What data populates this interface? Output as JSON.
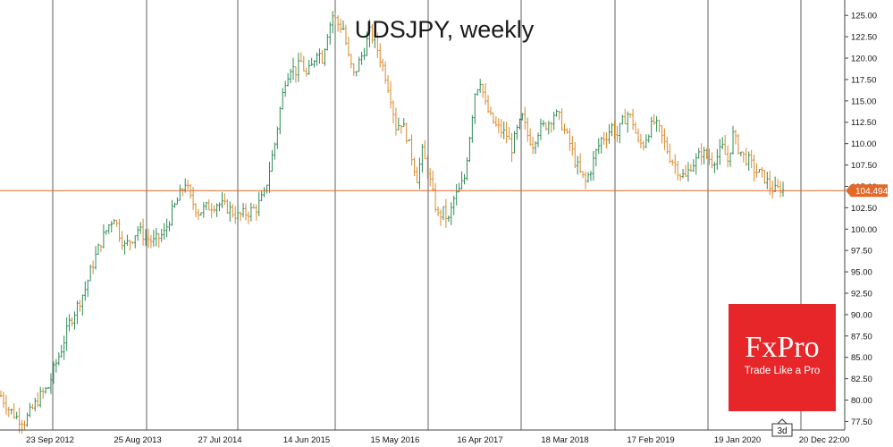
{
  "chart_data": {
    "type": "candlestick",
    "title": "UDSJPY, weekly",
    "symbol": "UDSJPY",
    "timeframe": "weekly",
    "ylim": [
      76.5,
      126.8
    ],
    "y_ticks": [
      "125.00",
      "122.50",
      "120.00",
      "117.50",
      "115.00",
      "112.50",
      "110.00",
      "107.50",
      "105.00",
      "102.50",
      "100.00",
      "97.50",
      "95.00",
      "92.50",
      "90.00",
      "87.50",
      "85.00",
      "82.50",
      "80.00",
      "77.50"
    ],
    "x_ticks": [
      "23 Sep 2012",
      "25 Aug 2013",
      "27 Jul 2014",
      "14 Jun 2015",
      "15 May 2016",
      "16 Apr 2017",
      "18 Mar 2018",
      "17 Feb 2019",
      "19 Jan 2020",
      "20 Dec 22:00"
    ],
    "current_price": "104.494",
    "price_line_color": "#e2692a",
    "bull_color": "#2e8b57",
    "bear_color": "#d98a2b",
    "grid": true,
    "period_marker": "3d",
    "series": [
      {
        "values": [
          [
            0,
            80.5
          ],
          [
            3,
            79.0
          ],
          [
            6,
            78.0
          ],
          [
            9,
            77.5
          ],
          [
            12,
            79.0
          ],
          [
            15,
            80.5
          ],
          [
            18,
            81.5
          ],
          [
            20,
            83.5
          ],
          [
            23,
            86.0
          ],
          [
            26,
            89.0
          ],
          [
            29,
            91.0
          ],
          [
            32,
            93.0
          ],
          [
            35,
            96.0
          ],
          [
            38,
            98.5
          ],
          [
            41,
            100.5
          ],
          [
            43,
            101.5
          ],
          [
            45,
            99.5
          ],
          [
            47,
            98.0
          ],
          [
            50,
            99.0
          ],
          [
            52,
            100.0
          ],
          [
            55,
            99.0
          ],
          [
            58,
            98.5
          ],
          [
            62,
            99.5
          ],
          [
            65,
            102.0
          ],
          [
            68,
            104.0
          ],
          [
            70,
            105.5
          ],
          [
            72,
            103.5
          ],
          [
            75,
            102.0
          ],
          [
            78,
            102.5
          ],
          [
            82,
            103.0
          ],
          [
            86,
            102.5
          ],
          [
            90,
            101.5
          ],
          [
            94,
            102.0
          ],
          [
            97,
            102.5
          ],
          [
            100,
            104.0
          ],
          [
            102,
            107.0
          ],
          [
            104,
            110.0
          ],
          [
            106,
            114.0
          ],
          [
            108,
            117.5
          ],
          [
            110,
            119.0
          ],
          [
            112,
            118.5
          ],
          [
            114,
            119.5
          ],
          [
            116,
            118.0
          ],
          [
            118,
            119.0
          ],
          [
            120,
            121.0
          ],
          [
            122,
            120.0
          ],
          [
            124,
            123.0
          ],
          [
            126,
            125.0
          ],
          [
            128,
            124.0
          ],
          [
            130,
            123.5
          ],
          [
            132,
            120.0
          ],
          [
            134,
            118.0
          ],
          [
            136,
            119.5
          ],
          [
            138,
            121.0
          ],
          [
            140,
            123.0
          ],
          [
            142,
            122.0
          ],
          [
            144,
            120.0
          ],
          [
            146,
            118.0
          ],
          [
            148,
            115.5
          ],
          [
            150,
            112.0
          ],
          [
            152,
            112.5
          ],
          [
            154,
            111.0
          ],
          [
            156,
            108.5
          ],
          [
            158,
            106.0
          ],
          [
            160,
            109.0
          ],
          [
            162,
            107.0
          ],
          [
            164,
            104.0
          ],
          [
            166,
            101.5
          ],
          [
            168,
            102.0
          ],
          [
            170,
            101.0
          ],
          [
            172,
            103.5
          ],
          [
            174,
            104.5
          ],
          [
            176,
            106.0
          ],
          [
            178,
            111.0
          ],
          [
            180,
            116.0
          ],
          [
            182,
            117.5
          ],
          [
            184,
            114.5
          ],
          [
            186,
            113.0
          ],
          [
            188,
            112.0
          ],
          [
            190,
            111.5
          ],
          [
            192,
            111.0
          ],
          [
            194,
            109.5
          ],
          [
            196,
            111.5
          ],
          [
            198,
            113.0
          ],
          [
            200,
            111.0
          ],
          [
            202,
            110.0
          ],
          [
            204,
            111.5
          ],
          [
            206,
            112.0
          ],
          [
            208,
            112.5
          ],
          [
            210,
            113.5
          ],
          [
            212,
            113.0
          ],
          [
            214,
            111.5
          ],
          [
            216,
            110.0
          ],
          [
            218,
            108.0
          ],
          [
            220,
            106.5
          ],
          [
            222,
            105.5
          ],
          [
            224,
            107.0
          ],
          [
            226,
            109.0
          ],
          [
            228,
            110.5
          ],
          [
            230,
            111.0
          ],
          [
            232,
            112.0
          ],
          [
            234,
            111.0
          ],
          [
            236,
            112.5
          ],
          [
            238,
            113.5
          ],
          [
            240,
            112.5
          ],
          [
            242,
            110.0
          ],
          [
            244,
            110.0
          ],
          [
            246,
            111.5
          ],
          [
            248,
            112.5
          ],
          [
            250,
            111.5
          ],
          [
            252,
            110.0
          ],
          [
            254,
            108.5
          ],
          [
            256,
            107.5
          ],
          [
            258,
            106.5
          ],
          [
            260,
            106.0
          ],
          [
            262,
            107.5
          ],
          [
            264,
            108.0
          ],
          [
            266,
            109.0
          ],
          [
            268,
            108.5
          ],
          [
            270,
            108.0
          ],
          [
            272,
            108.5
          ],
          [
            274,
            109.5
          ],
          [
            276,
            108.0
          ],
          [
            278,
            111.0
          ],
          [
            280,
            109.5
          ],
          [
            282,
            108.5
          ],
          [
            284,
            108.0
          ],
          [
            286,
            107.0
          ],
          [
            288,
            106.5
          ],
          [
            290,
            106.0
          ],
          [
            292,
            105.0
          ],
          [
            294,
            104.5
          ],
          [
            296,
            104.8
          ],
          [
            297,
            104.494
          ]
        ]
      }
    ]
  },
  "branding": {
    "logo_text": "FxPro",
    "tagline": "Trade Like a Pro",
    "logo_color": "#e62629"
  }
}
